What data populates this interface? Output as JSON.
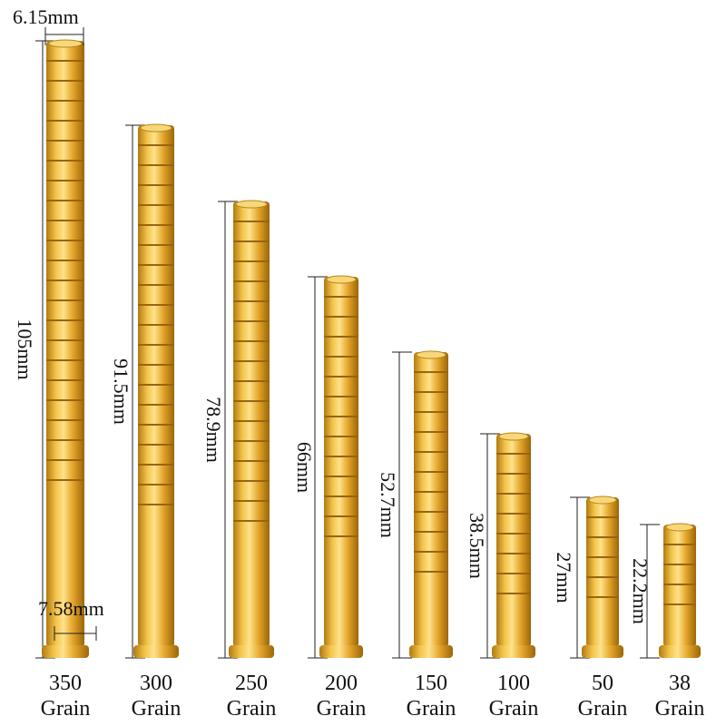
{
  "dimensions": {
    "top_diameter": "6.15mm",
    "bottom_diameter": "7.58mm"
  },
  "items": [
    {
      "length": "105mm",
      "grain": "350",
      "unit": "Grain"
    },
    {
      "length": "91.5mm",
      "grain": "300",
      "unit": "Grain"
    },
    {
      "length": "78.9mm",
      "grain": "250",
      "unit": "Grain"
    },
    {
      "length": "66mm",
      "grain": "200",
      "unit": "Grain"
    },
    {
      "length": "52.7mm",
      "grain": "150",
      "unit": "Grain"
    },
    {
      "length": "38.5mm",
      "grain": "100",
      "unit": "Grain"
    },
    {
      "length": "27mm",
      "grain": "50",
      "unit": "Grain"
    },
    {
      "length": "22.2mm",
      "grain": "38",
      "unit": "Grain"
    }
  ]
}
